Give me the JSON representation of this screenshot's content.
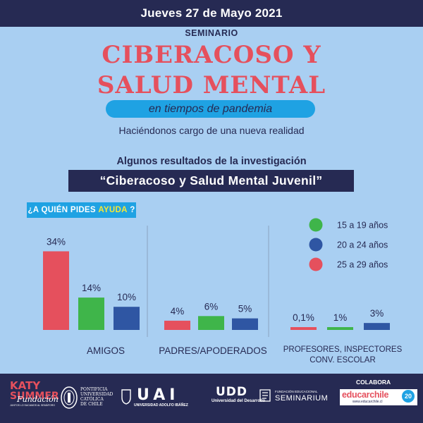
{
  "header": {
    "date": "Jueves 27 de Mayo 2021"
  },
  "event": {
    "label": "SEMINARIO",
    "title_line1": "CIBERACOSO Y",
    "title_line2": "SALUD MENTAL",
    "tagline": "en tiempos de pandemia",
    "subtitle": "Haciéndonos cargo de una nueva realidad"
  },
  "research": {
    "label": "Algunos resultados de la investigación",
    "study_title": "“Ciberacoso y Salud Mental Juvenil”"
  },
  "question": {
    "prefix": "¿A QUIÉN PIDES ",
    "emphasis": "AYUDA",
    "suffix": " ?"
  },
  "colors": {
    "header": "#262a53",
    "background": "#a9cff2",
    "accent_blue": "#1fa2e3",
    "title_red": "#e5505d"
  },
  "chart_data": {
    "type": "bar",
    "categories": [
      "AMIGOS",
      "PADRES/APODERADOS",
      "PROFESORES, INSPECTORES CONV. ESCOLAR"
    ],
    "category_labels": [
      [
        "AMIGOS"
      ],
      [
        "PADRES/APODERADOS"
      ],
      [
        "PROFESORES, INSPECTORES",
        "CONV. ESCOLAR"
      ]
    ],
    "series": [
      {
        "name": "15 a 19  años",
        "color": "#3fb54a",
        "values": [
          14,
          6,
          1
        ],
        "labels": [
          "14%",
          "6%",
          "1%"
        ]
      },
      {
        "name": "20 a 24 años",
        "color": "#2f56a3",
        "values": [
          10,
          5,
          3
        ],
        "labels": [
          "10%",
          "5%",
          "3%"
        ]
      },
      {
        "name": "25 a 29 años",
        "color": "#e5505d",
        "values": [
          34,
          4,
          0.1
        ],
        "labels": [
          "34%",
          "4%",
          "0,1%"
        ]
      }
    ],
    "legend": "top-right",
    "grid": false
  },
  "footer": {
    "katy_line1": "KATY",
    "katy_line2": "SUMMER",
    "katy_script": "Fundación",
    "katy_small": "JUNTOS LO SACAMOS AL SEMÁFORO",
    "puc_line1": "PONTIFICIA",
    "puc_line2": "UNIVERSIDAD",
    "puc_line3": "CATÓLICA",
    "puc_line4": "DE CHILE",
    "uai_mark": "UAI",
    "uai_name": "UNIVERSIDAD ADOLFO IBÁÑEZ",
    "udd_mark": "UDD",
    "udd_name": "Universidad del Desarrollo",
    "sem_small": "FUNDACIÓN EDUCACIONAL",
    "sem_name": "SEMINARIUM",
    "colabora": "COLABORA",
    "educarchile": "educarchile",
    "educarchile_url": "www.educarchile.cl",
    "badge": "20"
  }
}
